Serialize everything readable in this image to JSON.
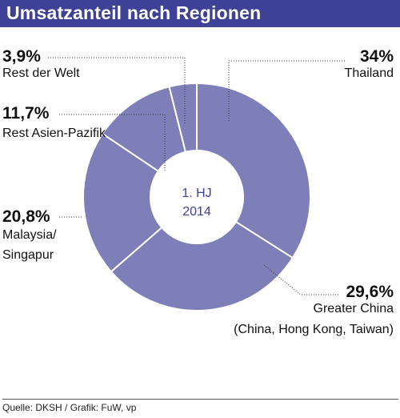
{
  "header": {
    "title": "Umsatzanteil nach Regionen"
  },
  "center_label": {
    "line1": "1. HJ",
    "line2": "2014"
  },
  "footer": {
    "source": "Quelle: DKSH / Grafik: FuW, vp"
  },
  "colors": {
    "slice": "#7e7eb8",
    "title_bg": "#3f4196",
    "center_text": "#3f4196"
  },
  "chart_data": {
    "type": "pie",
    "variant": "donut",
    "slices": [
      {
        "value_label": "34%",
        "value": 34.0,
        "label_lines": [
          "Thailand"
        ]
      },
      {
        "value_label": "29,6%",
        "value": 29.6,
        "label_lines": [
          "Greater China",
          "(China, Hong Kong, Taiwan)"
        ]
      },
      {
        "value_label": "20,8%",
        "value": 20.8,
        "label_lines": [
          "Malaysia/",
          "Singapur"
        ]
      },
      {
        "value_label": "11,7%",
        "value": 11.7,
        "label_lines": [
          "Rest Asien-Pazifik"
        ]
      },
      {
        "value_label": "3,9%",
        "value": 3.9,
        "label_lines": [
          "Rest der Welt"
        ]
      }
    ]
  }
}
